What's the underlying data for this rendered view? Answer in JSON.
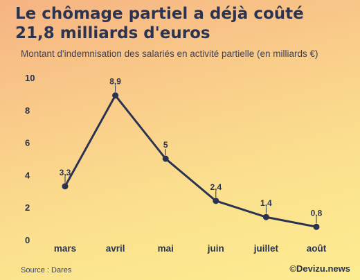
{
  "header": {
    "title": "Le chômage partiel a déjà coûté 21,8 milliards d'euros",
    "subtitle": "Montant d'indemnisation des salariés en activité partielle (en milliards €)"
  },
  "footer": {
    "source": "Source : Dares",
    "credit": "©Devizu.news"
  },
  "colors": {
    "line": "#2b3350",
    "text": "#2b3350"
  },
  "chart_data": {
    "type": "line",
    "title": "Le chômage partiel a déjà coûté 21,8 milliards d'euros",
    "subtitle": "Montant d'indemnisation des salariés en activité partielle (en milliards €)",
    "categories": [
      "mars",
      "avril",
      "mai",
      "juin",
      "juillet",
      "août"
    ],
    "values": [
      3.3,
      8.9,
      5,
      2.4,
      1.4,
      0.8
    ],
    "data_labels": [
      "3,3",
      "8,9",
      "5",
      "2,4",
      "1,4",
      "0,8"
    ],
    "y_ticks": [
      "0",
      "2",
      "4",
      "6",
      "8",
      "10"
    ],
    "ylim": [
      0,
      10
    ],
    "grid": false,
    "legend": "none"
  }
}
